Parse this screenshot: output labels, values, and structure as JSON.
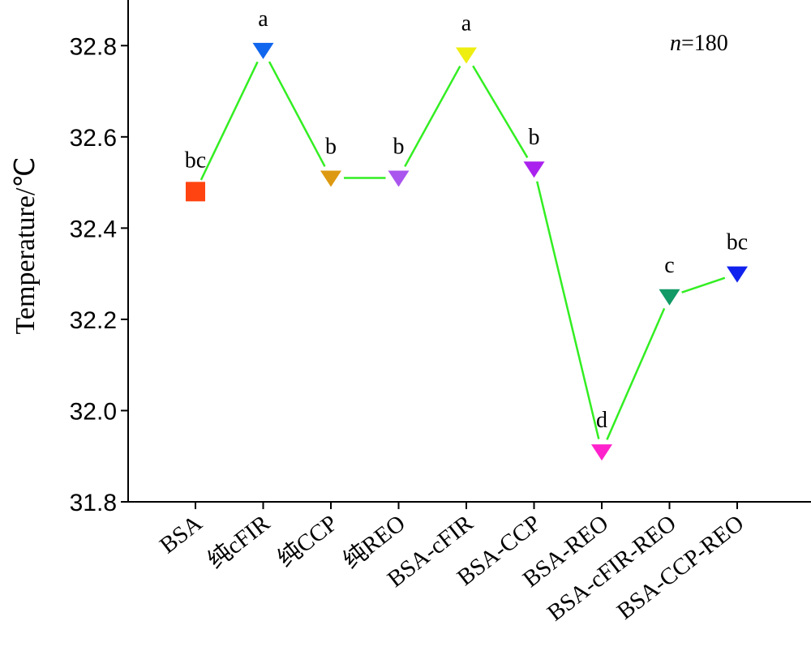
{
  "chart_data": {
    "type": "line",
    "title": "",
    "xlabel": "",
    "ylabel": "Temperature/℃",
    "ylim": [
      31.8,
      32.9
    ],
    "yticks": [
      "31.8",
      "32.0",
      "32.2",
      "32.4",
      "32.6",
      "32.8"
    ],
    "grid": false,
    "legend": "none",
    "annotation": {
      "italic": "n",
      "rest": "=180"
    },
    "line_color": "#33ee22",
    "categories": [
      "BSA",
      "纯cFIR",
      "纯CCP",
      "纯REO",
      "BSA-cFIR",
      "BSA-CCP",
      "BSA-REO",
      "BSA-cFIR-REO",
      "BSA-CCP-REO"
    ],
    "series": [
      {
        "values": [
          32.48,
          32.79,
          32.51,
          32.51,
          32.78,
          32.53,
          31.91,
          32.25,
          32.3
        ],
        "significance": [
          "bc",
          "a",
          "b",
          "b",
          "a",
          "b",
          "d",
          "c",
          "bc"
        ],
        "markers": [
          "square",
          "triangle-down",
          "triangle-down",
          "triangle-down",
          "triangle-down",
          "triangle-down",
          "triangle-down",
          "triangle-down",
          "triangle-down"
        ],
        "colors": [
          "#ff4411",
          "#1166ee",
          "#dd9911",
          "#aa55ee",
          "#eeee11",
          "#aa22ee",
          "#ff22cc",
          "#119966",
          "#1122ee"
        ]
      }
    ]
  }
}
